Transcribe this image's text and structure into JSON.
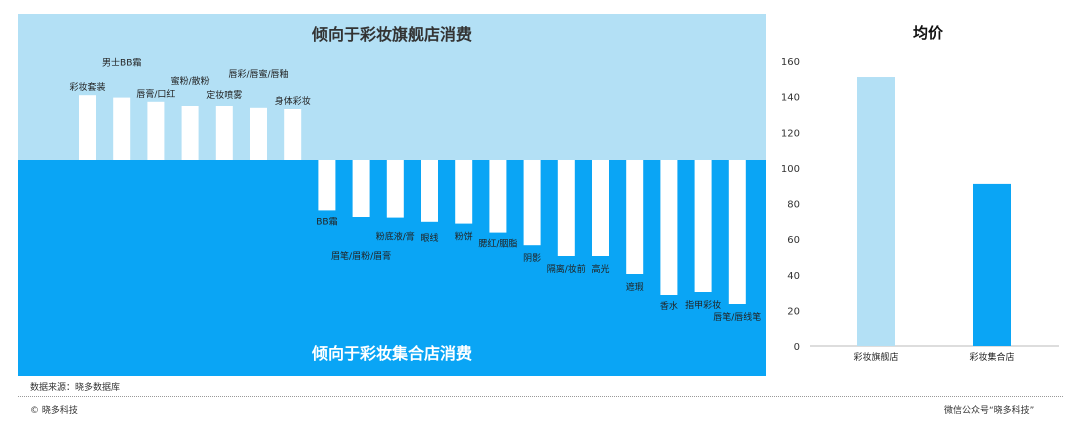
{
  "chart_data": [
    {
      "type": "bar",
      "title_top": "倾向于彩妆旗舰店消费",
      "title_bottom": "倾向于彩妆集合店消费",
      "colors": {
        "top_bg": "#b3e0f5",
        "bottom_bg": "#0aa5f5",
        "bar": "#ffffff"
      },
      "categories": [
        "彩妆套装",
        "男士BB霜",
        "唇膏/口红",
        "蜜粉/散粉",
        "定妆喷雾",
        "唇彩/唇蜜/唇釉",
        "身体彩妆",
        "BB霜",
        "眉笔/眉粉/眉膏",
        "粉底液/膏",
        "眼线",
        "粉饼",
        "腮红/胭脂",
        "阴影",
        "隔离/妆前",
        "高光",
        "遮瑕",
        "香水",
        "指甲彩妆",
        "唇笔/唇线笔"
      ],
      "values": [
        1.08,
        1.04,
        0.97,
        0.9,
        0.9,
        0.87,
        0.85,
        -0.84,
        -0.95,
        -0.96,
        -1.03,
        -1.06,
        -1.21,
        -1.42,
        -1.6,
        -1.6,
        -1.9,
        -2.25,
        -2.2,
        -2.4
      ]
    },
    {
      "type": "bar",
      "title": "均价",
      "categories": [
        "彩妆旗舰店",
        "彩妆集合店"
      ],
      "values": [
        151,
        91
      ],
      "ylim": [
        0,
        160
      ],
      "yticks": [
        "0",
        "20",
        "40",
        "60",
        "80",
        "100",
        "120",
        "140",
        "160"
      ],
      "colors": [
        "#b3e0f5",
        "#0aa5f5"
      ]
    }
  ],
  "footer": {
    "source": "数据来源：晓多数据库",
    "copyright": "© 晓多科技",
    "wechat": "微信公众号“晓多科技”"
  }
}
